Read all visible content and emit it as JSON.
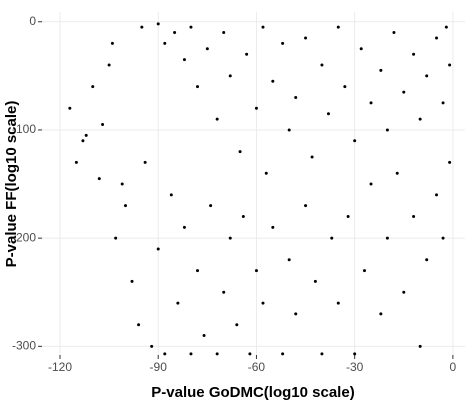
{
  "chart_data": {
    "type": "scatter",
    "xlabel": "P-value GoDMC(log10 scale)",
    "ylabel": "P-value FF(log10 scale)",
    "xlim": [
      -125.5,
      3.7
    ],
    "ylim": [
      -308,
      9
    ],
    "xticks": [
      -120,
      -90,
      -60,
      -30,
      0
    ],
    "yticks": [
      0,
      -100,
      -200,
      -300
    ],
    "grid": true,
    "color": "#000000",
    "x": [
      -95,
      -90,
      -88,
      -85,
      -82,
      -80,
      -78,
      -75,
      -72,
      -70,
      -68,
      -65,
      -63,
      -60,
      -58,
      -57,
      -55,
      -52,
      -50,
      -48,
      -45,
      -43,
      -40,
      -38,
      -35,
      -33,
      -30,
      -28,
      -25,
      -22,
      -20,
      -18,
      -15,
      -12,
      -10,
      -8,
      -5,
      -3,
      -1,
      -2,
      -117,
      -115,
      -112,
      -110,
      -108,
      -105,
      -103,
      -100,
      -98,
      -96,
      -94,
      -92,
      -90,
      -88,
      -86,
      -84,
      -82,
      -80,
      -78,
      -76,
      -74,
      -72,
      -70,
      -68,
      -66,
      -64,
      -62,
      -60,
      -58,
      -55,
      -52,
      -50,
      -48,
      -45,
      -42,
      -40,
      -37,
      -35,
      -32,
      -30,
      -27,
      -25,
      -22,
      -20,
      -17,
      -15,
      -12,
      -10,
      -8,
      -5,
      -3,
      -1,
      -104,
      -107,
      -113,
      -101
    ],
    "y": [
      -5,
      -2,
      -20,
      -10,
      -35,
      -5,
      -60,
      -25,
      -90,
      -10,
      -50,
      -120,
      -30,
      -80,
      -5,
      -140,
      -55,
      -20,
      -100,
      -70,
      -15,
      -125,
      -40,
      -85,
      -5,
      -60,
      -110,
      -25,
      -75,
      -45,
      -100,
      -10,
      -65,
      -30,
      -90,
      -50,
      -15,
      -75,
      -40,
      -5,
      -80,
      -130,
      -105,
      -60,
      -145,
      -40,
      -200,
      -170,
      -240,
      -280,
      -130,
      -300,
      -210,
      -307,
      -160,
      -260,
      -190,
      -307,
      -230,
      -290,
      -170,
      -307,
      -250,
      -200,
      -280,
      -180,
      -307,
      -230,
      -260,
      -190,
      -307,
      -220,
      -270,
      -170,
      -240,
      -307,
      -200,
      -260,
      -180,
      -307,
      -230,
      -150,
      -270,
      -200,
      -140,
      -250,
      -180,
      -300,
      -220,
      -160,
      -200,
      -130,
      -20,
      -95,
      -110,
      -150
    ]
  }
}
